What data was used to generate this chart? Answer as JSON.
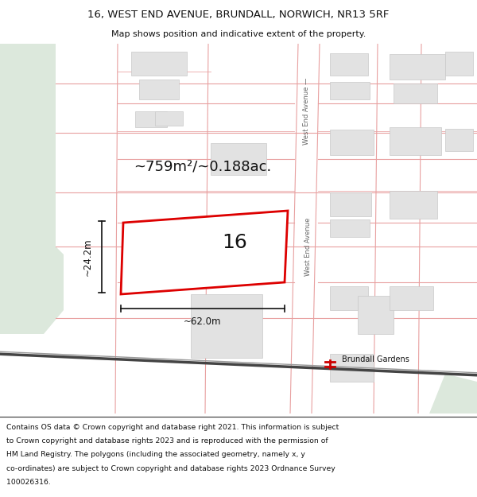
{
  "title_line1": "16, WEST END AVENUE, BRUNDALL, NORWICH, NR13 5RF",
  "title_line2": "Map shows position and indicative extent of the property.",
  "footer_lines": [
    "Contains OS data © Crown copyright and database right 2021. This information is subject",
    "to Crown copyright and database rights 2023 and is reproduced with the permission of",
    "HM Land Registry. The polygons (including the associated geometry, namely x, y",
    "co-ordinates) are subject to Crown copyright and database rights 2023 Ordnance Survey",
    "100026316."
  ],
  "background_color": "#ffffff",
  "map_bg_color": "#f7f5f2",
  "green_area_color": "#dce8dc",
  "building_color": "#e2e2e2",
  "building_outline": "#c8c8c8",
  "street_line_color": "#e8a0a0",
  "highlight_color": "#dd0000",
  "highlight_fill": "#ffffff",
  "annotation_color": "#111111",
  "label_number": "16",
  "area_label": "~759m²/~0.188ac.",
  "width_label": "~62.0m",
  "height_label": "~24.2m",
  "station_label": "Brundall Gardens",
  "street_label1": "West End Avenue —",
  "street_label2": "West End Avenue"
}
